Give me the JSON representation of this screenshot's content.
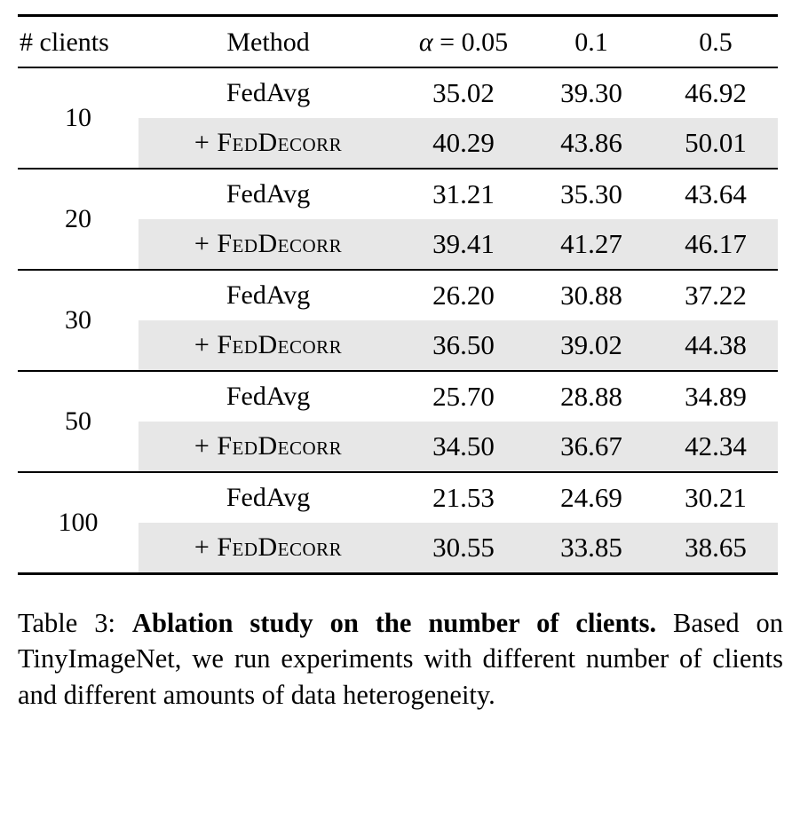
{
  "table": {
    "headers": {
      "clients": "# clients",
      "method": "Method",
      "alpha_symbol": "α",
      "col1_rest": " = 0.05",
      "col2": "0.1",
      "col3": "0.5"
    },
    "highlight_color": "#e7e7e7",
    "groups": [
      {
        "clients": "10",
        "fedavg": {
          "method": "FedAvg",
          "v1": "35.02",
          "v2": "39.30",
          "v3": "46.92"
        },
        "feddecorr": {
          "method": "+ FedDecorr",
          "v1": "40.29",
          "v2": "43.86",
          "v3": "50.01"
        }
      },
      {
        "clients": "20",
        "fedavg": {
          "method": "FedAvg",
          "v1": "31.21",
          "v2": "35.30",
          "v3": "43.64"
        },
        "feddecorr": {
          "method": "+ FedDecorr",
          "v1": "39.41",
          "v2": "41.27",
          "v3": "46.17"
        }
      },
      {
        "clients": "30",
        "fedavg": {
          "method": "FedAvg",
          "v1": "26.20",
          "v2": "30.88",
          "v3": "37.22"
        },
        "feddecorr": {
          "method": "+ FedDecorr",
          "v1": "36.50",
          "v2": "39.02",
          "v3": "44.38"
        }
      },
      {
        "clients": "50",
        "fedavg": {
          "method": "FedAvg",
          "v1": "25.70",
          "v2": "28.88",
          "v3": "34.89"
        },
        "feddecorr": {
          "method": "+ FedDecorr",
          "v1": "34.50",
          "v2": "36.67",
          "v3": "42.34"
        }
      },
      {
        "clients": "100",
        "fedavg": {
          "method": "FedAvg",
          "v1": "21.53",
          "v2": "24.69",
          "v3": "30.21"
        },
        "feddecorr": {
          "method": "+ FedDecorr",
          "v1": "30.55",
          "v2": "33.85",
          "v3": "38.65"
        }
      }
    ]
  },
  "caption": {
    "label": "Table 3:",
    "bold": "Ablation study on the number of clients.",
    "text": "Based on TinyImageNet, we run experiments with different number of clients and different amounts of data heterogeneity."
  },
  "chart_data": {
    "type": "table",
    "title": "Ablation study on the number of clients (TinyImageNet)",
    "columns": [
      "# clients",
      "Method",
      "alpha=0.05",
      "0.1",
      "0.5"
    ],
    "rows": [
      [
        "10",
        "FedAvg",
        35.02,
        39.3,
        46.92
      ],
      [
        "10",
        "+ FedDecorr",
        40.29,
        43.86,
        50.01
      ],
      [
        "20",
        "FedAvg",
        31.21,
        35.3,
        43.64
      ],
      [
        "20",
        "+ FedDecorr",
        39.41,
        41.27,
        46.17
      ],
      [
        "30",
        "FedAvg",
        26.2,
        30.88,
        37.22
      ],
      [
        "30",
        "+ FedDecorr",
        36.5,
        39.02,
        44.38
      ],
      [
        "50",
        "FedAvg",
        25.7,
        28.88,
        34.89
      ],
      [
        "50",
        "+ FedDecorr",
        34.5,
        36.67,
        42.34
      ],
      [
        "100",
        "FedAvg",
        21.53,
        24.69,
        30.21
      ],
      [
        "100",
        "+ FedDecorr",
        30.55,
        33.85,
        38.65
      ]
    ]
  }
}
